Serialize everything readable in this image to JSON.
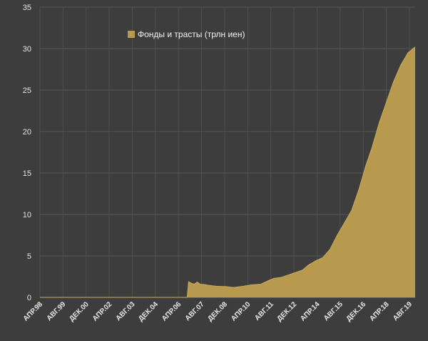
{
  "chart_data": {
    "type": "area",
    "xlabel": "",
    "ylabel": "",
    "ylim": [
      0,
      35
    ],
    "y_ticks": [
      "0",
      "5",
      "10",
      "15",
      "20",
      "25",
      "30",
      "35"
    ],
    "x_range": [
      "1998-04",
      "2019-12"
    ],
    "x_tick_labels": [
      {
        "label": "АПР.98",
        "date": "1998-04"
      },
      {
        "label": "АВГ.99",
        "date": "1999-08"
      },
      {
        "label": "ДЕК.00",
        "date": "2000-12"
      },
      {
        "label": "АПР.02",
        "date": "2002-04"
      },
      {
        "label": "АВГ.03",
        "date": "2003-08"
      },
      {
        "label": "ДЕК.04",
        "date": "2004-12"
      },
      {
        "label": "АПР.06",
        "date": "2006-04"
      },
      {
        "label": "АВГ.07",
        "date": "2007-08"
      },
      {
        "label": "ДЕК.08",
        "date": "2008-12"
      },
      {
        "label": "АПР.10",
        "date": "2010-04"
      },
      {
        "label": "АВГ.11",
        "date": "2011-08"
      },
      {
        "label": "ДЕК.12",
        "date": "2012-12"
      },
      {
        "label": "АПР.14",
        "date": "2014-04"
      },
      {
        "label": "АВГ.15",
        "date": "2015-08"
      },
      {
        "label": "ДЕК.16",
        "date": "2016-12"
      },
      {
        "label": "АПР.18",
        "date": "2018-04"
      },
      {
        "label": "АВГ.19",
        "date": "2019-08"
      }
    ],
    "grid": true,
    "legend_position": "top-center",
    "series": [
      {
        "name": "Фонды и трасты (трлн иен)",
        "color": "#b89a4e",
        "points": [
          [
            "1998-04",
            0
          ],
          [
            "2006-10",
            0
          ],
          [
            "2006-11",
            1.9
          ],
          [
            "2007-01",
            1.7
          ],
          [
            "2007-03",
            1.6
          ],
          [
            "2007-05",
            1.85
          ],
          [
            "2007-07",
            1.6
          ],
          [
            "2007-10",
            1.55
          ],
          [
            "2008-01",
            1.45
          ],
          [
            "2008-06",
            1.35
          ],
          [
            "2009-01",
            1.3
          ],
          [
            "2009-06",
            1.2
          ],
          [
            "2010-01",
            1.35
          ],
          [
            "2010-06",
            1.5
          ],
          [
            "2011-01",
            1.6
          ],
          [
            "2011-06",
            2.0
          ],
          [
            "2011-10",
            2.3
          ],
          [
            "2012-03",
            2.4
          ],
          [
            "2012-08",
            2.7
          ],
          [
            "2013-01",
            3.0
          ],
          [
            "2013-06",
            3.3
          ],
          [
            "2013-10",
            3.9
          ],
          [
            "2014-03",
            4.4
          ],
          [
            "2014-08",
            4.8
          ],
          [
            "2015-01",
            5.8
          ],
          [
            "2015-06",
            7.5
          ],
          [
            "2015-11",
            9.0
          ],
          [
            "2016-04",
            10.5
          ],
          [
            "2016-09",
            13.0
          ],
          [
            "2017-02",
            16.0
          ],
          [
            "2017-06",
            18.0
          ],
          [
            "2017-11",
            21.0
          ],
          [
            "2018-04",
            23.5
          ],
          [
            "2018-09",
            26.0
          ],
          [
            "2019-02",
            28.0
          ],
          [
            "2019-07",
            29.5
          ],
          [
            "2019-12",
            30.2
          ]
        ]
      }
    ]
  }
}
